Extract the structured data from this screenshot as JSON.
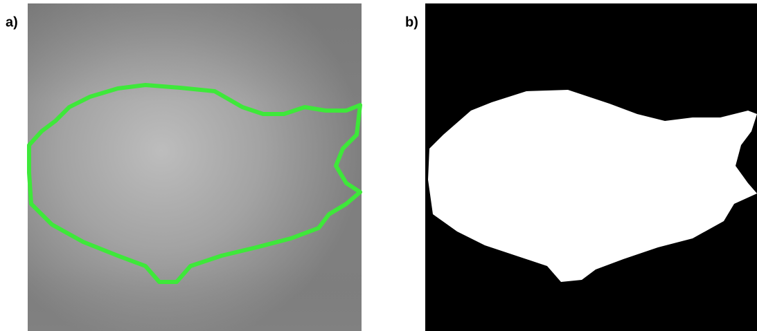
{
  "panels": [
    {
      "label": "a)"
    },
    {
      "label": "b)"
    }
  ]
}
